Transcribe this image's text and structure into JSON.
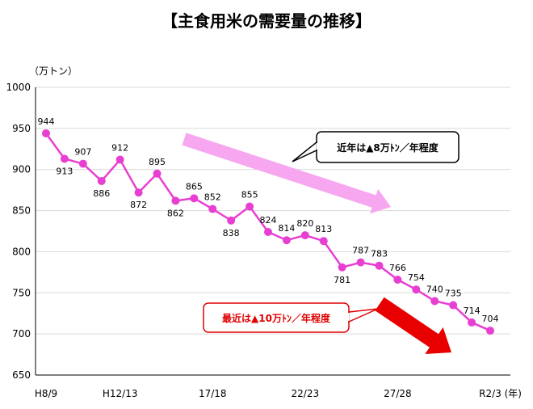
{
  "chart_data": {
    "type": "line",
    "title": "【主食用米の需要量の推移】",
    "yunit": "（万トン）",
    "xunit": "(年)",
    "ylim": [
      650,
      1000
    ],
    "yticks": [
      650,
      700,
      750,
      800,
      850,
      900,
      950,
      1000
    ],
    "x_tick_labels": [
      {
        "index": 0,
        "label": "H8/9"
      },
      {
        "index": 4,
        "label": "H12/13"
      },
      {
        "index": 9,
        "label": "17/18"
      },
      {
        "index": 14,
        "label": "22/23"
      },
      {
        "index": 19,
        "label": "27/28"
      },
      {
        "index": 24,
        "label": "R2/3"
      }
    ],
    "series": [
      {
        "color": "#e83fd3",
        "values": [
          944,
          913,
          907,
          886,
          912,
          872,
          895,
          862,
          865,
          852,
          838,
          855,
          824,
          814,
          820,
          813,
          781,
          787,
          783,
          766,
          754,
          740,
          735,
          714,
          704
        ]
      }
    ],
    "annotations": [
      {
        "text": "近年は▲8万ﾄﾝ／年程度",
        "color": "#000000",
        "border": "#000000",
        "arrow_color": "#f7a6f0"
      },
      {
        "text": "最近は▲10万ﾄﾝ／年程度",
        "color": "#e00000",
        "border": "#e00000",
        "arrow_color": "#e80000"
      }
    ]
  }
}
